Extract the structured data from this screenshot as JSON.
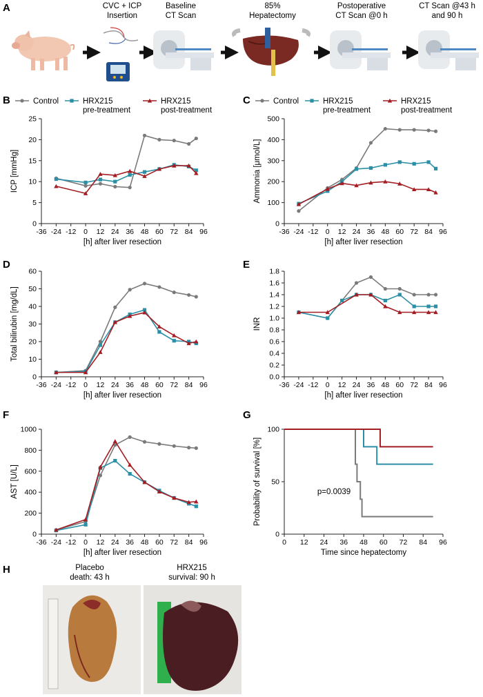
{
  "colors": {
    "control": "#7a7a7a",
    "pre": "#2b8fa6",
    "post": "#a31d22",
    "axis": "#222222"
  },
  "panel_a": {
    "letter": "A",
    "steps": [
      {
        "label_lines": [
          "CVC + ICP",
          "Insertion"
        ]
      },
      {
        "label_lines": [
          "Baseline",
          "CT Scan"
        ]
      },
      {
        "label_lines": [
          "85%",
          "Hepatectomy"
        ]
      },
      {
        "label_lines": [
          "Postoperative",
          "CT Scan @0 h"
        ]
      },
      {
        "label_lines": [
          "CT Scan @43 h",
          "and 90 h"
        ]
      }
    ]
  },
  "panel_h": {
    "letter": "H",
    "left_title": [
      "Placebo",
      "death: 43 h"
    ],
    "right_title": [
      "HRX215",
      "survival: 90 h"
    ]
  },
  "chart_data": [
    {
      "id": "B",
      "letter": "B",
      "type": "line",
      "legend": [
        {
          "series": "control",
          "label_lines": [
            "Control"
          ]
        },
        {
          "series": "pre",
          "label_lines": [
            "HRX215",
            "pre-treatment"
          ]
        },
        {
          "series": "post",
          "label_lines": [
            "HRX215",
            "post-treatment"
          ]
        }
      ],
      "xlabel": "[h] after liver resection",
      "ylabel": "ICP [mmHg]",
      "xlim": [
        -36,
        96
      ],
      "ylim": [
        0,
        25
      ],
      "xticks": [
        -36,
        -24,
        -12,
        0,
        12,
        24,
        36,
        48,
        60,
        72,
        84,
        96
      ],
      "yticks": [
        0,
        5,
        10,
        15,
        20,
        25
      ],
      "series": [
        {
          "key": "control",
          "x": [
            -24,
            0,
            12,
            24,
            36,
            48,
            60,
            72,
            84,
            90
          ],
          "y": [
            10.8,
            9.0,
            9.5,
            8.8,
            8.6,
            21.0,
            20.0,
            19.8,
            19.0,
            20.3
          ]
        },
        {
          "key": "pre",
          "x": [
            -24,
            0,
            12,
            24,
            36,
            48,
            60,
            72,
            84,
            90
          ],
          "y": [
            10.6,
            9.8,
            10.5,
            10.0,
            11.6,
            12.3,
            13.0,
            14.0,
            13.6,
            12.7
          ]
        },
        {
          "key": "post",
          "x": [
            -24,
            0,
            12,
            24,
            36,
            48,
            60,
            72,
            84,
            90
          ],
          "y": [
            8.9,
            7.2,
            11.8,
            11.5,
            12.5,
            11.3,
            13.0,
            13.8,
            13.8,
            12.0
          ]
        }
      ]
    },
    {
      "id": "C",
      "letter": "C",
      "type": "line",
      "legend": [
        {
          "series": "control",
          "label_lines": [
            "Control"
          ]
        },
        {
          "series": "pre",
          "label_lines": [
            "HRX215",
            "pre-treatment"
          ]
        },
        {
          "series": "post",
          "label_lines": [
            "HRX215",
            "post-treatment"
          ]
        }
      ],
      "xlabel": "[h] after liver resection",
      "ylabel": "Ammonia [μmol/L]",
      "xlim": [
        -36,
        96
      ],
      "ylim": [
        0,
        500
      ],
      "xticks": [
        -36,
        -24,
        -12,
        0,
        12,
        24,
        36,
        48,
        60,
        72,
        84,
        96
      ],
      "yticks": [
        0,
        100,
        200,
        300,
        400,
        500
      ],
      "series": [
        {
          "key": "control",
          "x": [
            -24,
            0,
            12,
            24,
            36,
            48,
            60,
            72,
            84,
            90
          ],
          "y": [
            60,
            170,
            210,
            265,
            385,
            452,
            447,
            447,
            444,
            440
          ]
        },
        {
          "key": "pre",
          "x": [
            -24,
            0,
            12,
            24,
            36,
            48,
            60,
            72,
            84,
            90
          ],
          "y": [
            95,
            155,
            200,
            260,
            265,
            280,
            293,
            285,
            293,
            262
          ]
        },
        {
          "key": "post",
          "x": [
            -24,
            0,
            12,
            24,
            36,
            48,
            60,
            72,
            84,
            90
          ],
          "y": [
            92,
            165,
            192,
            182,
            195,
            200,
            190,
            163,
            163,
            148
          ]
        }
      ]
    },
    {
      "id": "D",
      "letter": "D",
      "type": "line",
      "xlabel": "[h] after liver resection",
      "ylabel": "Total bilirubin [mg/dL]",
      "xlim": [
        -36,
        96
      ],
      "ylim": [
        0,
        60
      ],
      "xticks": [
        -36,
        -24,
        -12,
        0,
        12,
        24,
        36,
        48,
        60,
        72,
        84,
        96
      ],
      "yticks": [
        0,
        10,
        20,
        30,
        40,
        50,
        60
      ],
      "series": [
        {
          "key": "control",
          "x": [
            -24,
            0,
            12,
            24,
            36,
            48,
            60,
            72,
            84,
            90
          ],
          "y": [
            2.5,
            3.5,
            20,
            39.5,
            49.5,
            53,
            51,
            48,
            46.5,
            45.5
          ]
        },
        {
          "key": "pre",
          "x": [
            -24,
            0,
            12,
            24,
            36,
            48,
            60,
            72,
            84,
            90
          ],
          "y": [
            2.5,
            3.0,
            18,
            31,
            35.5,
            38,
            25.5,
            20.5,
            20,
            19
          ]
        },
        {
          "key": "post",
          "x": [
            -24,
            0,
            12,
            24,
            36,
            48,
            60,
            72,
            84,
            90
          ],
          "y": [
            2.5,
            2.5,
            14,
            31,
            34.5,
            36.5,
            28.5,
            23.5,
            19,
            20
          ]
        }
      ]
    },
    {
      "id": "E",
      "letter": "E",
      "type": "line",
      "xlabel": "[h] after liver resection",
      "ylabel": "INR",
      "xlim": [
        -36,
        96
      ],
      "ylim": [
        0,
        1.8
      ],
      "xticks": [
        -36,
        -24,
        -12,
        0,
        12,
        24,
        36,
        48,
        60,
        72,
        84,
        96
      ],
      "yticks": [
        "0.0",
        "0.2",
        "0.4",
        "0.6",
        "0.8",
        "1.0",
        "1.2",
        "1.4",
        "1.6",
        "1.8"
      ],
      "series": [
        {
          "key": "control",
          "x": [
            -24,
            0,
            12,
            24,
            36,
            48,
            60,
            72,
            84,
            90
          ],
          "y": [
            1.1,
            1.0,
            1.3,
            1.6,
            1.7,
            1.5,
            1.5,
            1.4,
            1.4,
            1.4
          ]
        },
        {
          "key": "pre",
          "x": [
            -24,
            0,
            12,
            24,
            36,
            48,
            60,
            72,
            84,
            90
          ],
          "y": [
            1.1,
            1.0,
            1.3,
            1.4,
            1.4,
            1.3,
            1.4,
            1.2,
            1.2,
            1.2
          ]
        },
        {
          "key": "post",
          "x": [
            -24,
            0,
            24,
            36,
            48,
            60,
            72,
            84,
            90
          ],
          "y": [
            1.1,
            1.1,
            1.4,
            1.4,
            1.2,
            1.1,
            1.1,
            1.1,
            1.1
          ]
        }
      ]
    },
    {
      "id": "F",
      "letter": "F",
      "type": "line",
      "xlabel": "[h] after liver resection",
      "ylabel": "AST [U/L]",
      "xlim": [
        -36,
        96
      ],
      "ylim": [
        0,
        1000
      ],
      "xticks": [
        -36,
        -24,
        -12,
        0,
        12,
        24,
        36,
        48,
        60,
        72,
        84,
        96
      ],
      "yticks": [
        0,
        200,
        400,
        600,
        800,
        1000
      ],
      "series": [
        {
          "key": "control",
          "x": [
            -24,
            0,
            12,
            24,
            36,
            48,
            60,
            72,
            84,
            90
          ],
          "y": [
            40,
            120,
            560,
            850,
            925,
            880,
            860,
            840,
            825,
            820
          ]
        },
        {
          "key": "pre",
          "x": [
            -24,
            0,
            12,
            24,
            36,
            48,
            60,
            72,
            84,
            90
          ],
          "y": [
            35,
            90,
            630,
            700,
            575,
            495,
            415,
            345,
            290,
            265
          ]
        },
        {
          "key": "post",
          "x": [
            -24,
            0,
            12,
            24,
            36,
            48,
            60,
            72,
            84,
            90
          ],
          "y": [
            40,
            140,
            640,
            885,
            660,
            495,
            405,
            345,
            305,
            310
          ]
        }
      ]
    },
    {
      "id": "G",
      "letter": "G",
      "type": "step",
      "xlabel": "Time since hepatectomy",
      "ylabel": "Probability of survival [%]",
      "xlim": [
        0,
        96
      ],
      "ylim": [
        0,
        100
      ],
      "xticks": [
        0,
        12,
        24,
        36,
        48,
        60,
        72,
        84,
        96
      ],
      "yticks": [
        0,
        50,
        100
      ],
      "annotation": "p=0.0039",
      "series": [
        {
          "key": "control",
          "x": [
            0,
            43,
            44,
            46,
            47,
            48,
            90
          ],
          "y": [
            100,
            66.7,
            50,
            33.3,
            16.7,
            16.7,
            16.7
          ]
        },
        {
          "key": "pre",
          "x": [
            0,
            48,
            56,
            90
          ],
          "y": [
            100,
            83.3,
            66.7,
            66.7
          ]
        },
        {
          "key": "post",
          "x": [
            0,
            58,
            90
          ],
          "y": [
            100,
            83.3,
            83.3
          ]
        }
      ]
    }
  ]
}
